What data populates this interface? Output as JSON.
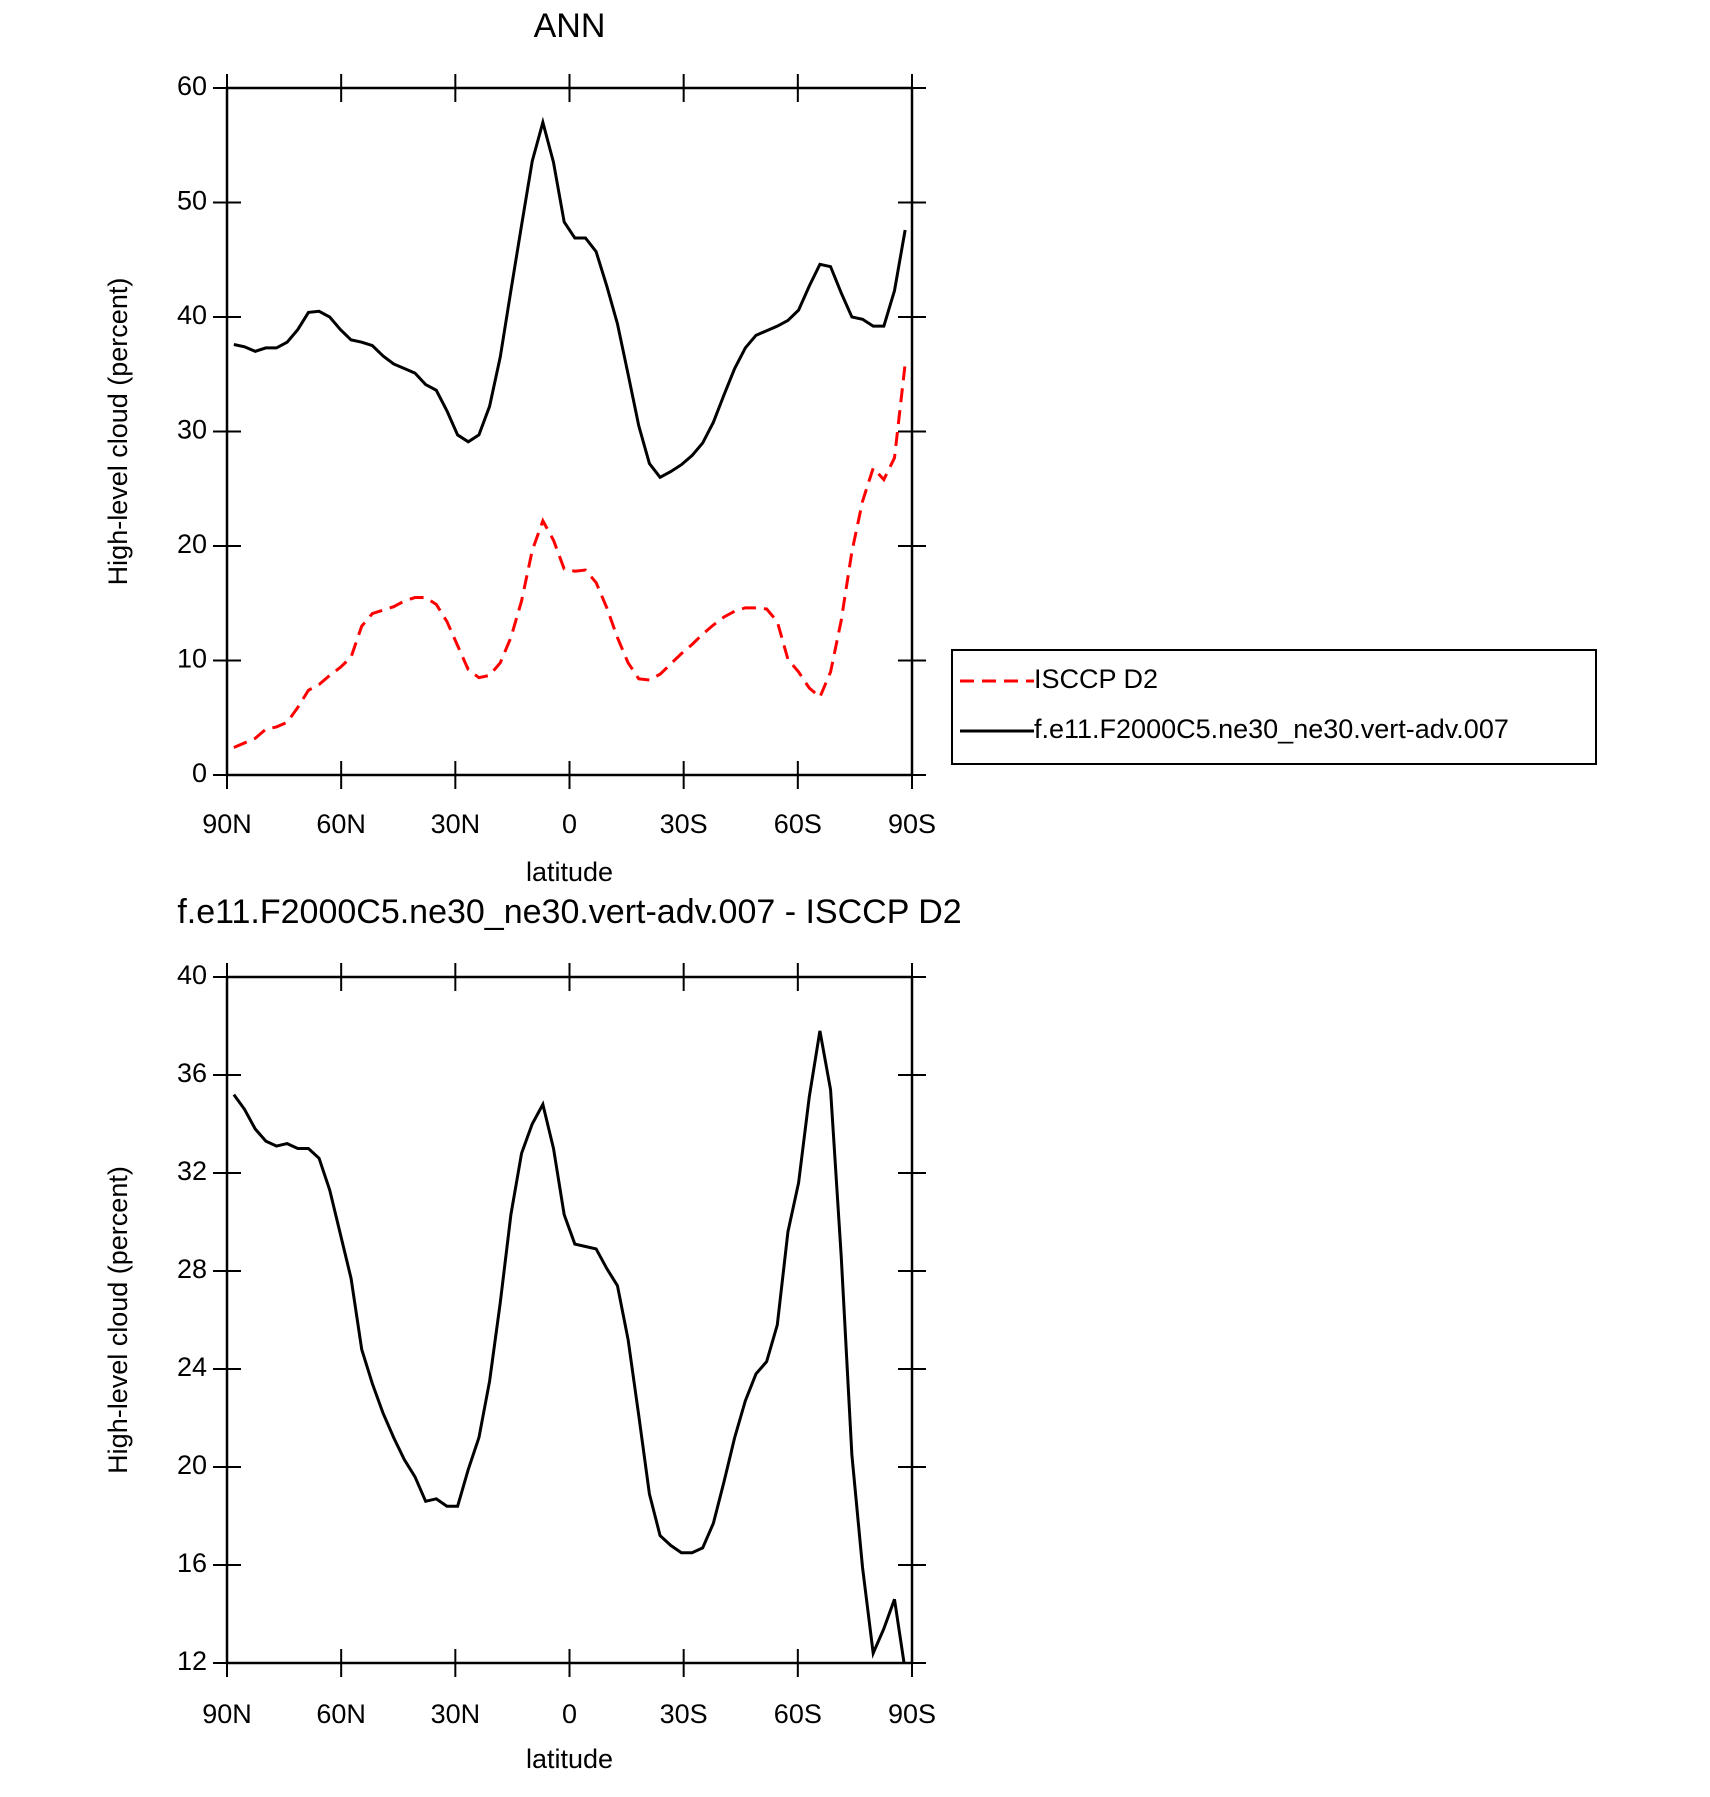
{
  "chart_data": [
    {
      "type": "line",
      "title": "ANN",
      "xlabel": "latitude",
      "ylabel": "High-level cloud (percent)",
      "x": [
        88.2,
        85.4,
        82.6,
        79.8,
        77.0,
        74.2,
        71.4,
        68.6,
        65.8,
        63.0,
        60.2,
        57.4,
        54.6,
        51.8,
        49.0,
        46.2,
        43.4,
        40.6,
        37.8,
        35.0,
        32.2,
        29.4,
        26.6,
        23.8,
        21.0,
        18.2,
        15.4,
        12.6,
        9.8,
        7.0,
        4.2,
        1.4,
        -1.4,
        -4.2,
        -7.0,
        -9.8,
        -12.6,
        -15.4,
        -18.2,
        -21.0,
        -23.8,
        -26.6,
        -29.4,
        -32.2,
        -35.0,
        -37.8,
        -40.6,
        -43.4,
        -46.2,
        -49.0,
        -51.8,
        -54.6,
        -57.4,
        -60.2,
        -63.0,
        -65.8,
        -68.6,
        -71.4,
        -74.2,
        -77.0,
        -79.8,
        -82.6,
        -85.4,
        -88.2
      ],
      "series": [
        {
          "name": "ISCCP D2",
          "color": "#ff0000",
          "line_style": "dashed",
          "values": [
            2.4,
            2.8,
            3.2,
            4.0,
            4.2,
            4.6,
            5.9,
            7.4,
            7.9,
            8.7,
            9.4,
            10.3,
            13.0,
            14.1,
            14.4,
            14.7,
            15.2,
            15.5,
            15.5,
            14.9,
            13.4,
            11.3,
            9.2,
            8.5,
            8.7,
            9.8,
            12.0,
            15.2,
            19.6,
            22.2,
            20.5,
            18.0,
            17.8,
            17.9,
            16.8,
            14.6,
            12.0,
            9.8,
            8.4,
            8.3,
            8.8,
            9.7,
            10.6,
            11.4,
            12.3,
            13.1,
            13.8,
            14.3,
            14.6,
            14.6,
            14.5,
            13.4,
            10.1,
            9.0,
            7.6,
            6.8,
            9.0,
            13.5,
            19.5,
            23.9,
            26.8,
            25.8,
            27.7,
            35.9
          ]
        },
        {
          "name": "f.e11.F2000C5.ne30_ne30.vert-adv.007",
          "color": "#000000",
          "line_style": "solid",
          "values": [
            37.6,
            37.4,
            37.0,
            37.3,
            37.3,
            37.8,
            38.9,
            40.4,
            40.5,
            40.0,
            38.9,
            38.0,
            37.8,
            37.5,
            36.6,
            35.9,
            35.5,
            35.1,
            34.1,
            33.6,
            31.8,
            29.7,
            29.1,
            29.7,
            32.2,
            36.5,
            42.3,
            48.0,
            53.6,
            57.0,
            53.5,
            48.3,
            46.9,
            46.9,
            45.7,
            42.7,
            39.4,
            35.0,
            30.5,
            27.2,
            26.0,
            26.5,
            27.1,
            27.9,
            29.0,
            30.8,
            33.2,
            35.5,
            37.3,
            38.4,
            38.8,
            39.2,
            39.7,
            40.6,
            42.7,
            44.6,
            44.4,
            42.1,
            40.0,
            39.8,
            39.2,
            39.2,
            42.3,
            47.6
          ]
        }
      ],
      "xlim": [
        90,
        -90
      ],
      "xticks": [
        {
          "value": 90,
          "label": "90N"
        },
        {
          "value": 60,
          "label": "60N"
        },
        {
          "value": 30,
          "label": "30N"
        },
        0,
        {
          "value": -30,
          "label": "30S"
        },
        {
          "value": -60,
          "label": "60S"
        },
        {
          "value": -90,
          "label": "90S"
        }
      ],
      "ylim": [
        0,
        60
      ],
      "yticks": [
        0,
        10,
        20,
        30,
        40,
        50,
        60
      ],
      "legend": "right"
    },
    {
      "type": "line",
      "title": "f.e11.F2000C5.ne30_ne30.vert-adv.007 - ISCCP D2",
      "xlabel": "latitude",
      "ylabel": "High-level cloud (percent)",
      "x": [
        88.2,
        85.4,
        82.6,
        79.8,
        77.0,
        74.2,
        71.4,
        68.6,
        65.8,
        63.0,
        60.2,
        57.4,
        54.6,
        51.8,
        49.0,
        46.2,
        43.4,
        40.6,
        37.8,
        35.0,
        32.2,
        29.4,
        26.6,
        23.8,
        21.0,
        18.2,
        15.4,
        12.6,
        9.8,
        7.0,
        4.2,
        1.4,
        -1.4,
        -4.2,
        -7.0,
        -9.8,
        -12.6,
        -15.4,
        -18.2,
        -21.0,
        -23.8,
        -26.6,
        -29.4,
        -32.2,
        -35.0,
        -37.8,
        -40.6,
        -43.4,
        -46.2,
        -49.0,
        -51.8,
        -54.6,
        -57.4,
        -60.2,
        -63.0,
        -65.8,
        -68.6,
        -71.4,
        -74.2,
        -77.0,
        -79.8,
        -82.6,
        -85.4,
        -88.2
      ],
      "color": "#000000",
      "values": [
        35.2,
        34.6,
        33.8,
        33.3,
        33.1,
        33.2,
        33.0,
        33.0,
        32.6,
        31.3,
        29.5,
        27.7,
        24.8,
        23.4,
        22.2,
        21.2,
        20.3,
        19.6,
        18.6,
        18.7,
        18.4,
        18.4,
        19.9,
        21.2,
        23.5,
        26.7,
        30.3,
        32.8,
        34.0,
        34.8,
        33.0,
        30.3,
        29.1,
        29.0,
        28.9,
        28.1,
        27.4,
        25.2,
        22.1,
        18.9,
        17.2,
        16.8,
        16.5,
        16.5,
        16.7,
        17.7,
        19.4,
        21.2,
        22.7,
        23.8,
        24.3,
        25.8,
        29.6,
        31.6,
        35.1,
        37.8,
        35.4,
        28.6,
        20.5,
        15.9,
        12.4,
        13.4,
        14.6,
        11.7
      ],
      "xlim": [
        90,
        -90
      ],
      "xticks": [
        {
          "value": 90,
          "label": "90N"
        },
        {
          "value": 60,
          "label": "60N"
        },
        {
          "value": 30,
          "label": "30N"
        },
        0,
        {
          "value": -30,
          "label": "30S"
        },
        {
          "value": -60,
          "label": "60S"
        },
        {
          "value": -90,
          "label": "90S"
        }
      ],
      "ylim": [
        12,
        40
      ],
      "yticks": [
        12,
        16,
        20,
        24,
        28,
        32,
        36,
        40
      ]
    }
  ]
}
